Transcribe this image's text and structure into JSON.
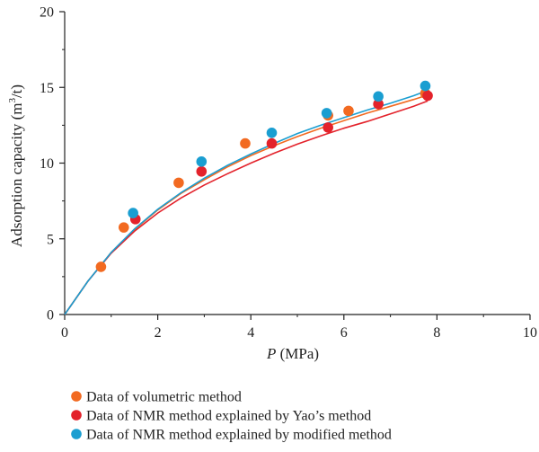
{
  "chart_data": {
    "type": "scatter",
    "xlabel_italic": "P",
    "xlabel_rest": " (MPa)",
    "ylabel": "Adsorption capacity (m",
    "ylabel_sup": "3",
    "ylabel_tail": "/t)",
    "xlim": [
      0,
      10
    ],
    "ylim": [
      0,
      20
    ],
    "x_ticks": [
      "0",
      "2",
      "4",
      "6",
      "8",
      "10"
    ],
    "y_ticks": [
      "0",
      "5",
      "10",
      "15",
      "20"
    ],
    "grid": false,
    "legend_position": "bottom",
    "series": [
      {
        "name": "Data of volumetric method",
        "color": "#f26a21",
        "x": [
          0.78,
          1.27,
          2.45,
          3.88,
          5.66,
          6.1,
          7.75
        ],
        "y": [
          3.15,
          5.75,
          8.7,
          11.3,
          13.15,
          13.45,
          14.6
        ],
        "fit": [
          [
            0,
            0
          ],
          [
            0.5,
            2.2
          ],
          [
            1,
            4.1
          ],
          [
            1.5,
            5.6
          ],
          [
            2,
            6.9
          ],
          [
            2.5,
            8.0
          ],
          [
            3,
            8.9
          ],
          [
            3.5,
            9.75
          ],
          [
            4,
            10.5
          ],
          [
            4.5,
            11.15
          ],
          [
            5,
            11.75
          ],
          [
            5.5,
            12.3
          ],
          [
            6,
            12.8
          ],
          [
            6.5,
            13.3
          ],
          [
            7,
            13.75
          ],
          [
            7.5,
            14.2
          ],
          [
            7.8,
            14.5
          ]
        ]
      },
      {
        "name": "Data of NMR method explained by Yao’s method",
        "color": "#e3222b",
        "x": [
          1.52,
          2.94,
          4.45,
          5.66,
          6.74,
          7.8
        ],
        "y": [
          6.3,
          9.45,
          11.3,
          12.35,
          13.9,
          14.45
        ],
        "fit": [
          [
            0,
            0
          ],
          [
            0.5,
            2.2
          ],
          [
            1,
            4.05
          ],
          [
            1.5,
            5.5
          ],
          [
            2,
            6.7
          ],
          [
            2.5,
            7.7
          ],
          [
            3,
            8.55
          ],
          [
            3.5,
            9.3
          ],
          [
            4,
            10.0
          ],
          [
            4.5,
            10.65
          ],
          [
            5,
            11.25
          ],
          [
            5.5,
            11.8
          ],
          [
            6,
            12.3
          ],
          [
            6.5,
            12.75
          ],
          [
            7,
            13.25
          ],
          [
            7.5,
            13.75
          ],
          [
            7.8,
            14.1
          ]
        ]
      },
      {
        "name": "Data of NMR method explained by modified method",
        "color": "#1a9ed1",
        "x": [
          1.47,
          2.94,
          4.45,
          5.63,
          6.74,
          7.75
        ],
        "y": [
          6.7,
          10.1,
          12.0,
          13.3,
          14.4,
          15.1
        ],
        "fit": [
          [
            0,
            0
          ],
          [
            0.5,
            2.2
          ],
          [
            1,
            4.1
          ],
          [
            1.5,
            5.65
          ],
          [
            2,
            6.95
          ],
          [
            2.5,
            8.05
          ],
          [
            3,
            9.0
          ],
          [
            3.5,
            9.85
          ],
          [
            4,
            10.6
          ],
          [
            4.5,
            11.3
          ],
          [
            5,
            11.95
          ],
          [
            5.5,
            12.5
          ],
          [
            6,
            13.0
          ],
          [
            6.5,
            13.5
          ],
          [
            7,
            13.95
          ],
          [
            7.5,
            14.45
          ],
          [
            7.8,
            14.8
          ]
        ]
      }
    ]
  }
}
